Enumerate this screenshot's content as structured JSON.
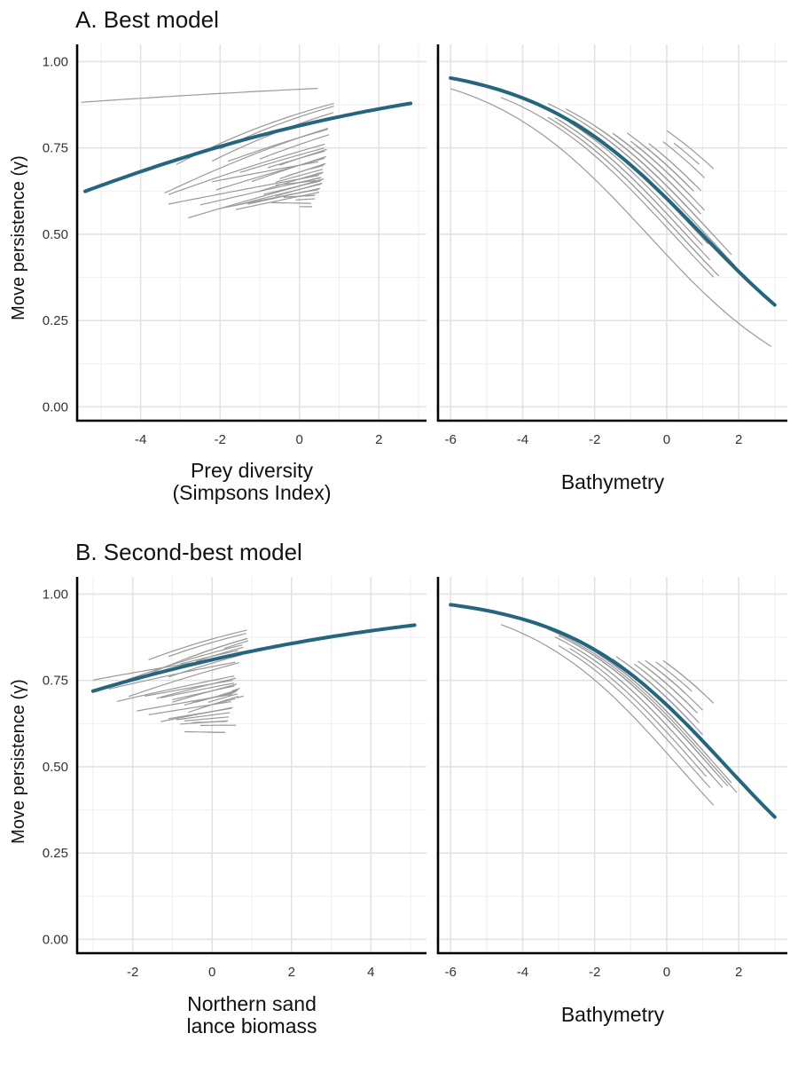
{
  "figure": {
    "section_a_title": "A. Best model",
    "section_b_title": "B. Second-best model",
    "y_axis_label": "Move persistence (γ)",
    "colors": {
      "population_line": "#23667e",
      "individual_lines": "#9a9a9a",
      "grid": "#e3e3e3"
    }
  },
  "chart_data": [
    {
      "id": "a-prey",
      "type": "line",
      "section": "A. Best model",
      "xlabel": [
        "Prey diversity",
        "(Simpsons Index)"
      ],
      "ylabel": "Move persistence (γ)",
      "xlim": [
        -5.6,
        3.2
      ],
      "ylim": [
        -0.04,
        1.05
      ],
      "xticks": [
        -4,
        -2,
        0,
        2
      ],
      "yticks": [
        0,
        0.25,
        0.5,
        0.75,
        1.0
      ],
      "ytick_labels": [
        "0.00",
        "0.25",
        "0.50",
        "0.75",
        "1.00"
      ],
      "population": {
        "intercept_logit": 1.48,
        "slope": 0.18,
        "x_range": [
          -5.4,
          2.8
        ]
      },
      "individuals": [
        [
          -5.5,
          0.46,
          0.5,
          0.92
        ],
        [
          -3.1,
          0.87,
          0.88,
          0.85
        ],
        [
          -2.0,
          0.87,
          0.89,
          0.84
        ],
        [
          -2.2,
          0.85,
          0.87,
          0.82
        ],
        [
          -3.4,
          0.72,
          0.78,
          0.78
        ],
        [
          -1.8,
          0.71,
          0.73,
          0.78
        ],
        [
          -1.0,
          0.74,
          0.76,
          0.76
        ],
        [
          -3.3,
          0.64,
          0.68,
          0.74
        ],
        [
          -1.5,
          0.62,
          0.66,
          0.73
        ],
        [
          -0.8,
          0.64,
          0.66,
          0.72
        ],
        [
          -3.3,
          0.49,
          0.53,
          0.66
        ],
        [
          -2.5,
          0.53,
          0.56,
          0.65
        ],
        [
          -2.2,
          0.48,
          0.54,
          0.7
        ],
        [
          -1.6,
          0.55,
          0.58,
          0.63
        ],
        [
          -1.3,
          0.52,
          0.55,
          0.62
        ],
        [
          -2.8,
          0.56,
          0.61,
          0.64
        ],
        [
          -1.0,
          0.6,
          0.64,
          0.66
        ],
        [
          -0.6,
          0.58,
          0.61,
          0.63
        ],
        [
          -0.2,
          0.61,
          0.63,
          0.64
        ],
        [
          0.1,
          0.63,
          0.65,
          0.7
        ],
        [
          -2.1,
          0.6,
          0.64,
          0.7
        ],
        [
          -1.2,
          0.67,
          0.69,
          0.7
        ],
        [
          -0.5,
          0.69,
          0.71,
          0.72
        ],
        [
          -2.0,
          0.49,
          0.53,
          0.62
        ],
        [
          -1.6,
          0.5,
          0.54,
          0.61
        ],
        [
          -0.9,
          0.53,
          0.57,
          0.64
        ],
        [
          -0.2,
          0.55,
          0.58,
          0.65
        ],
        [
          0.2,
          0.57,
          0.6,
          0.66
        ],
        [
          0.3,
          0.6,
          0.63,
          0.68
        ],
        [
          -0.6,
          0.43,
          0.46,
          0.65
        ],
        [
          -0.3,
          0.48,
          0.51,
          0.62
        ],
        [
          -0.4,
          0.4,
          0.42,
          0.61
        ],
        [
          -0.1,
          0.39,
          0.41,
          0.6
        ],
        [
          -0.4,
          0.37,
          0.4,
          0.61
        ],
        [
          -0.7,
          0.3,
          0.34,
          0.59
        ],
        [
          0.0,
          0.32,
          0.35,
          0.58
        ],
        [
          -0.6,
          0.59,
          0.62,
          0.67
        ],
        [
          -0.5,
          0.66,
          0.68,
          0.68
        ],
        [
          -0.3,
          0.63,
          0.66,
          0.68
        ]
      ]
    },
    {
      "id": "a-bathy",
      "type": "line",
      "section": "A. Best model",
      "xlabel": [
        "Bathymetry"
      ],
      "ylabel": "",
      "xlim": [
        -6.35,
        3.35
      ],
      "ylim": [
        -0.04,
        1.05
      ],
      "xticks": [
        -6,
        -4,
        -2,
        0,
        2
      ],
      "yticks": [
        0,
        0.25,
        0.5,
        0.75,
        1.0
      ],
      "ytick_labels": [
        "0.00",
        "0.25",
        "0.50",
        "0.75",
        "1.00"
      ],
      "population": {
        "intercept_logit": 0.42,
        "slope": -0.43,
        "x_range": [
          -6.0,
          3.0
        ]
      },
      "individuals": [
        [
          -6.0,
          2.9,
          3.0,
          0.44
        ],
        [
          -4.6,
          1.3,
          1.4,
          0.52
        ],
        [
          -3.3,
          1.45,
          1.55,
          0.54
        ],
        [
          -3.1,
          1.25,
          1.35,
          0.54
        ],
        [
          -3.0,
          1.2,
          1.35,
          0.56
        ],
        [
          -2.7,
          1.0,
          1.2,
          0.58
        ],
        [
          -2.6,
          1.15,
          1.3,
          0.6
        ],
        [
          -2.4,
          0.7,
          0.8,
          0.6
        ],
        [
          -2.2,
          0.65,
          0.8,
          0.6
        ],
        [
          -3.1,
          0.9,
          1.0,
          0.56
        ],
        [
          -2.1,
          0.8,
          0.95,
          0.6
        ],
        [
          -1.8,
          1.0,
          1.1,
          0.64
        ],
        [
          -1.6,
          0.85,
          1.0,
          0.64
        ],
        [
          -1.4,
          0.95,
          1.1,
          0.66
        ],
        [
          -1.2,
          0.9,
          1.05,
          0.66
        ],
        [
          -1.0,
          1.05,
          1.2,
          0.68
        ],
        [
          -0.9,
          0.7,
          0.85,
          0.68
        ],
        [
          -0.6,
          0.75,
          0.9,
          0.7
        ],
        [
          -0.4,
          0.6,
          0.7,
          0.7
        ],
        [
          -0.3,
          0.95,
          1.05,
          0.72
        ],
        [
          -2.0,
          1.2,
          1.3,
          0.64
        ],
        [
          -1.9,
          0.55,
          0.65,
          0.64
        ],
        [
          -1.5,
          0.5,
          0.6,
          0.66
        ],
        [
          -0.8,
          0.55,
          0.7,
          0.68
        ],
        [
          -3.3,
          1.9,
          2.0,
          0.62
        ],
        [
          -2.8,
          1.8,
          1.9,
          0.64
        ],
        [
          -0.1,
          1.05,
          1.15,
          0.76
        ],
        [
          0.0,
          1.3,
          1.4,
          0.8
        ],
        [
          -2.3,
          1.6,
          1.7,
          0.62
        ],
        [
          -0.5,
          0.8,
          0.9,
          0.72
        ],
        [
          -1.1,
          0.65,
          0.78,
          0.7
        ],
        [
          -0.7,
          0.5,
          0.6,
          0.7
        ],
        [
          0.2,
          0.9,
          1.0,
          0.78
        ],
        [
          -2.0,
          0.35,
          0.45,
          0.62
        ],
        [
          -1.5,
          0.25,
          0.35,
          0.66
        ]
      ]
    },
    {
      "id": "b-sandlance",
      "type": "line",
      "section": "B. Second-best model",
      "xlabel": [
        "Northern sand",
        "lance biomass"
      ],
      "ylabel": "Move persistence (γ)",
      "xlim": [
        -3.4,
        5.4
      ],
      "ylim": [
        -0.04,
        1.05
      ],
      "xticks": [
        -2,
        0,
        2,
        4
      ],
      "yticks": [
        0,
        0.25,
        0.5,
        0.75,
        1.0
      ],
      "ytick_labels": [
        "0.00",
        "0.25",
        "0.50",
        "0.75",
        "1.00"
      ],
      "population": {
        "intercept_logit": 1.45,
        "slope": 0.17,
        "x_range": [
          -3.0,
          5.1
        ]
      },
      "individuals": [
        [
          -3.0,
          0.53,
          0.58,
          0.81
        ],
        [
          -1.6,
          0.88,
          0.89,
          0.87
        ],
        [
          -1.8,
          0.89,
          0.9,
          0.84
        ],
        [
          -1.1,
          0.86,
          0.88,
          0.86
        ],
        [
          -0.6,
          0.89,
          0.9,
          0.84
        ],
        [
          0.3,
          0.91,
          0.92,
          0.83
        ],
        [
          -2.2,
          0.76,
          0.78,
          0.83
        ],
        [
          -0.4,
          0.79,
          0.81,
          0.82
        ],
        [
          -2.1,
          0.68,
          0.72,
          0.78
        ],
        [
          -1.1,
          0.74,
          0.76,
          0.8
        ],
        [
          -0.8,
          0.66,
          0.7,
          0.82
        ],
        [
          -2.6,
          0.58,
          0.62,
          0.79
        ],
        [
          -2.4,
          0.56,
          0.6,
          0.75
        ],
        [
          -1.7,
          0.52,
          0.56,
          0.74
        ],
        [
          -1.3,
          0.55,
          0.58,
          0.73
        ],
        [
          -1.0,
          0.57,
          0.6,
          0.72
        ],
        [
          -0.7,
          0.6,
          0.63,
          0.7
        ],
        [
          -0.4,
          0.62,
          0.65,
          0.7
        ],
        [
          -0.1,
          0.64,
          0.66,
          0.69
        ],
        [
          0.2,
          0.66,
          0.68,
          0.7
        ],
        [
          -1.4,
          0.6,
          0.64,
          0.74
        ],
        [
          -1.0,
          0.62,
          0.66,
          0.72
        ],
        [
          -0.5,
          0.56,
          0.6,
          0.7
        ],
        [
          0.0,
          0.59,
          0.62,
          0.68
        ],
        [
          -1.9,
          0.5,
          0.54,
          0.7
        ],
        [
          -1.6,
          0.48,
          0.52,
          0.68
        ],
        [
          -1.3,
          0.52,
          0.55,
          0.66
        ],
        [
          -1.1,
          0.48,
          0.52,
          0.66
        ],
        [
          -0.9,
          0.45,
          0.49,
          0.65
        ],
        [
          -0.7,
          0.42,
          0.45,
          0.64
        ],
        [
          -0.8,
          0.4,
          0.43,
          0.63
        ],
        [
          -0.5,
          0.37,
          0.4,
          0.63
        ],
        [
          -0.3,
          0.35,
          0.38,
          0.62
        ],
        [
          0.6,
          0.35,
          0.37,
          0.62
        ],
        [
          -0.7,
          0.31,
          0.35,
          0.6
        ],
        [
          -0.1,
          0.33,
          0.36,
          0.6
        ],
        [
          -0.6,
          0.66,
          0.68,
          0.68
        ],
        [
          0.5,
          0.7,
          0.72,
          0.7
        ],
        [
          0.8,
          0.62,
          0.64,
          0.68
        ]
      ]
    },
    {
      "id": "b-bathy",
      "type": "line",
      "section": "B. Second-best model",
      "xlabel": [
        "Bathymetry"
      ],
      "ylabel": "",
      "xlim": [
        -6.35,
        3.35
      ],
      "ylim": [
        -0.04,
        1.05
      ],
      "xticks": [
        -6,
        -4,
        -2,
        0,
        2
      ],
      "yticks": [
        0,
        0.25,
        0.5,
        0.75,
        1.0
      ],
      "ytick_labels": [
        "0.00",
        "0.25",
        "0.50",
        "0.75",
        "1.00"
      ],
      "population": {
        "intercept_logit": 0.75,
        "slope": -0.45,
        "x_range": [
          -6.0,
          3.0
        ]
      },
      "individuals": [
        [
          -4.6,
          1.3,
          1.4,
          0.54
        ],
        [
          -3.3,
          1.95,
          2.05,
          0.65
        ],
        [
          -3.1,
          1.55,
          1.65,
          0.62
        ],
        [
          -3.0,
          1.2,
          1.35,
          0.58
        ],
        [
          -2.7,
          1.1,
          1.2,
          0.6
        ],
        [
          -2.5,
          1.25,
          1.4,
          0.62
        ],
        [
          -2.3,
          1.8,
          1.9,
          0.66
        ],
        [
          -2.1,
          0.9,
          1.05,
          0.64
        ],
        [
          -2.0,
          1.05,
          1.2,
          0.64
        ],
        [
          -1.8,
          1.2,
          1.3,
          0.66
        ],
        [
          -1.6,
          0.9,
          1.0,
          0.66
        ],
        [
          -1.5,
          1.1,
          1.2,
          0.68
        ],
        [
          -1.3,
          0.95,
          1.05,
          0.68
        ],
        [
          -1.1,
          0.8,
          0.95,
          0.7
        ],
        [
          -1.0,
          1.0,
          1.1,
          0.7
        ],
        [
          -0.9,
          0.9,
          1.05,
          0.72
        ],
        [
          -0.7,
          0.7,
          0.8,
          0.72
        ],
        [
          -0.6,
          0.85,
          0.95,
          0.74
        ],
        [
          -0.4,
          0.75,
          0.85,
          0.74
        ],
        [
          -0.3,
          1.0,
          1.1,
          0.76
        ],
        [
          -2.6,
          1.5,
          1.6,
          0.64
        ],
        [
          -3.0,
          1.7,
          1.8,
          0.64
        ],
        [
          -0.1,
          1.3,
          1.4,
          0.8
        ],
        [
          0.0,
          1.05,
          1.15,
          0.8
        ],
        [
          -1.9,
          0.6,
          0.7,
          0.66
        ],
        [
          -1.2,
          0.6,
          0.7,
          0.7
        ],
        [
          -0.8,
          0.55,
          0.65,
          0.74
        ],
        [
          -0.5,
          0.5,
          0.6,
          0.76
        ],
        [
          -1.4,
          0.4,
          0.5,
          0.7
        ],
        [
          -0.3,
          0.7,
          0.8,
          0.78
        ],
        [
          -0.1,
          0.15,
          0.25,
          0.76
        ],
        [
          -0.6,
          0.35,
          0.45,
          0.76
        ]
      ]
    }
  ]
}
